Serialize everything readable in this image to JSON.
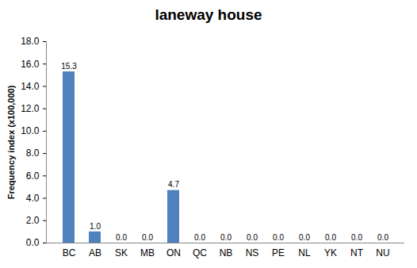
{
  "chart_data": {
    "type": "bar",
    "title": "laneway house",
    "y_label": "Frequency index (x100,000)",
    "categories": [
      "BC",
      "AB",
      "SK",
      "MB",
      "ON",
      "QC",
      "NB",
      "NS",
      "PE",
      "NL",
      "YK",
      "NT",
      "NU"
    ],
    "values": [
      15.3,
      1.0,
      0.0,
      0.0,
      4.7,
      0.0,
      0.0,
      0.0,
      0.0,
      0.0,
      0.0,
      0.0,
      0.0
    ],
    "value_labels": [
      "15.3",
      "1.0",
      "0.0",
      "0.0",
      "4.7",
      "0.0",
      "0.0",
      "0.0",
      "0.0",
      "0.0",
      "0.0",
      "0.0",
      "0.0"
    ],
    "color": "#4f81bd",
    "ylim": [
      0,
      18
    ],
    "yticks": [
      {
        "value": 0,
        "label": "0.0"
      },
      {
        "value": 2,
        "label": "2.0"
      },
      {
        "value": 4,
        "label": "4.0"
      },
      {
        "value": 6,
        "label": "6.0"
      },
      {
        "value": 8,
        "label": "8.0"
      },
      {
        "value": 10,
        "label": "10.0"
      },
      {
        "value": 12,
        "label": "12.0"
      },
      {
        "value": 14,
        "label": "14.0"
      },
      {
        "value": 16,
        "label": "16.0"
      },
      {
        "value": 18,
        "label": "18.0"
      }
    ],
    "grid": false,
    "data_labels": true
  }
}
